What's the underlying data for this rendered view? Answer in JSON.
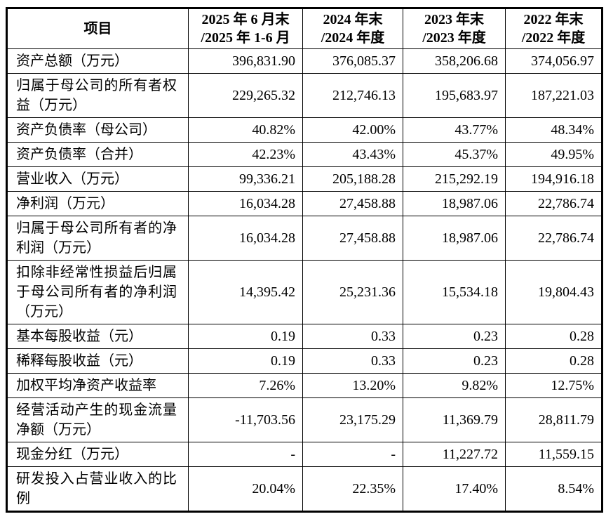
{
  "colors": {
    "border": "#000000",
    "text": "#000000",
    "background": "#ffffff"
  },
  "table": {
    "item_header": "项目",
    "period_columns": [
      {
        "line1": "2025 年 6 月末",
        "line2": "/2025 年 1-6 月"
      },
      {
        "line1": "2024 年末",
        "line2": "/2024 年度"
      },
      {
        "line1": "2023 年末",
        "line2": "/2023 年度"
      },
      {
        "line1": "2022 年末",
        "line2": "/2022 年度"
      }
    ],
    "rows": [
      {
        "label": "资产总额（万元）",
        "values": [
          "396,831.90",
          "376,085.37",
          "358,206.68",
          "374,056.97"
        ]
      },
      {
        "label": "归属于母公司的所有者权益（万元）",
        "values": [
          "229,265.32",
          "212,746.13",
          "195,683.97",
          "187,221.03"
        ]
      },
      {
        "label": "资产负债率（母公司）",
        "values": [
          "40.82%",
          "42.00%",
          "43.77%",
          "48.34%"
        ]
      },
      {
        "label": "资产负债率（合并）",
        "values": [
          "42.23%",
          "43.43%",
          "45.37%",
          "49.95%"
        ]
      },
      {
        "label": "营业收入（万元）",
        "values": [
          "99,336.21",
          "205,188.28",
          "215,292.19",
          "194,916.18"
        ]
      },
      {
        "label": "净利润（万元）",
        "values": [
          "16,034.28",
          "27,458.88",
          "18,987.06",
          "22,786.74"
        ]
      },
      {
        "label": "归属于母公司所有者的净利润（万元）",
        "values": [
          "16,034.28",
          "27,458.88",
          "18,987.06",
          "22,786.74"
        ]
      },
      {
        "label": "扣除非经常性损益后归属于母公司所有者的净利润（万元）",
        "values": [
          "14,395.42",
          "25,231.36",
          "15,534.18",
          "19,804.43"
        ]
      },
      {
        "label": "基本每股收益（元）",
        "values": [
          "0.19",
          "0.33",
          "0.23",
          "0.28"
        ]
      },
      {
        "label": "稀释每股收益（元）",
        "values": [
          "0.19",
          "0.33",
          "0.23",
          "0.28"
        ]
      },
      {
        "label": "加权平均净资产收益率",
        "values": [
          "7.26%",
          "13.20%",
          "9.82%",
          "12.75%"
        ]
      },
      {
        "label": "经营活动产生的现金流量净额（万元）",
        "values": [
          "-11,703.56",
          "23,175.29",
          "11,369.79",
          "28,811.79"
        ]
      },
      {
        "label": "现金分红（万元）",
        "values": [
          "-",
          "-",
          "11,227.72",
          "11,559.15"
        ]
      },
      {
        "label": "研发投入占营业收入的比例",
        "values": [
          "20.04%",
          "22.35%",
          "17.40%",
          "8.54%"
        ]
      }
    ]
  }
}
